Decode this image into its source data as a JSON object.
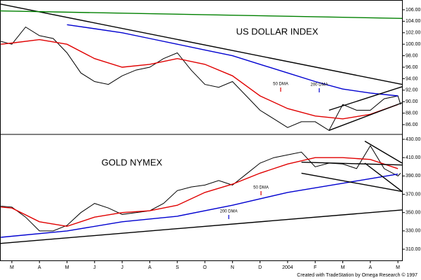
{
  "chart_data": [
    {
      "type": "line",
      "title": "US DOLLAR INDEX",
      "xlim": [
        -0.43,
        14.15
      ],
      "ylim": [
        84.3,
        107.7
      ],
      "yticks": [
        {
          "value": 86,
          "label": "86.00"
        },
        {
          "value": 88,
          "label": "88.00"
        },
        {
          "value": 90,
          "label": "90.00"
        },
        {
          "value": 92,
          "label": "92.00"
        },
        {
          "value": 94,
          "label": "94.00"
        },
        {
          "value": 96,
          "label": "96.00"
        },
        {
          "value": 98,
          "label": "98.00"
        },
        {
          "value": 100,
          "label": "100.00"
        },
        {
          "value": 102,
          "label": "102.00"
        },
        {
          "value": 104,
          "label": "104.00"
        },
        {
          "value": 106,
          "label": "106.00"
        }
      ],
      "series": [
        {
          "color": "#000000",
          "x": [
            -0.4,
            0,
            0.5,
            1,
            1.5,
            2,
            2.5,
            3,
            3.5,
            4,
            4.5,
            5,
            5.5,
            6,
            6.5,
            7,
            7.5,
            8,
            8.5,
            9,
            9.5,
            10,
            10.5,
            11,
            11.5,
            12,
            12.5,
            13,
            13.5,
            14,
            14.1
          ],
          "values": [
            100.5,
            100,
            103,
            101.5,
            101,
            98.5,
            95,
            93.5,
            93,
            94.5,
            95.5,
            96,
            97.5,
            98.5,
            95.5,
            93,
            92.5,
            93.5,
            91,
            88.5,
            87,
            85.5,
            86.5,
            86.5,
            85,
            89.5,
            88.5,
            88.5,
            90.5,
            91,
            89.5
          ]
        },
        {
          "name": "50 DMA",
          "color": "#e00000",
          "x": [
            -0.4,
            0,
            1,
            2,
            3,
            4,
            5,
            6,
            7,
            8,
            9,
            10,
            11,
            12,
            13,
            14
          ],
          "values": [
            100,
            100.2,
            100.8,
            100,
            97.5,
            96,
            96.5,
            97.5,
            96.5,
            94.5,
            91,
            88.8,
            87.5,
            87,
            87.8,
            89.5
          ]
        },
        {
          "name": "200 DMA",
          "color": "#0000d0",
          "x": [
            2,
            3,
            4,
            5,
            6,
            7,
            8,
            9,
            10,
            11,
            12,
            13,
            14
          ],
          "values": [
            103.4,
            102.7,
            102,
            101,
            100,
            99,
            98,
            96.5,
            95,
            93.5,
            92.2,
            91.5,
            91
          ]
        },
        {
          "color": "#000000",
          "x": [
            -0.43,
            14.15
          ],
          "values": [
            107,
            93
          ]
        },
        {
          "color": "#008000",
          "x": [
            -0.43,
            14.15
          ],
          "values": [
            105.8,
            104.5
          ]
        },
        {
          "color": "#000000",
          "x": [
            11.5,
            14.15
          ],
          "values": [
            85,
            89.8
          ]
        },
        {
          "color": "#000000",
          "x": [
            11.5,
            14.15
          ],
          "values": [
            88.5,
            92.6
          ]
        }
      ]
    },
    {
      "type": "line",
      "title": "GOLD NYMEX",
      "xlim": [
        -0.43,
        14.15
      ],
      "ylim": [
        297.8,
        434.6
      ],
      "yticks": [
        {
          "value": 310,
          "label": "310.00"
        },
        {
          "value": 330,
          "label": "330.00"
        },
        {
          "value": 350,
          "label": "350.00"
        },
        {
          "value": 370,
          "label": "370.00"
        },
        {
          "value": 390,
          "label": "390.00"
        },
        {
          "value": 410,
          "label": "410.00"
        },
        {
          "value": 430,
          "label": "430.00"
        }
      ],
      "xticks": [
        {
          "value": 0,
          "label": "M"
        },
        {
          "value": 1,
          "label": "A"
        },
        {
          "value": 2,
          "label": "M"
        },
        {
          "value": 3,
          "label": "J"
        },
        {
          "value": 4,
          "label": "J"
        },
        {
          "value": 5,
          "label": "A"
        },
        {
          "value": 6,
          "label": "S"
        },
        {
          "value": 7,
          "label": "O"
        },
        {
          "value": 8,
          "label": "N"
        },
        {
          "value": 9,
          "label": "D"
        },
        {
          "value": 10,
          "label": "2004"
        },
        {
          "value": 11,
          "label": "F"
        },
        {
          "value": 12,
          "label": "M"
        },
        {
          "value": 13,
          "label": "A"
        },
        {
          "value": 14,
          "label": "M"
        }
      ],
      "series": [
        {
          "color": "#000000",
          "x": [
            -0.4,
            0,
            0.5,
            1,
            1.5,
            2,
            2.5,
            3,
            3.5,
            4,
            4.5,
            5,
            5.5,
            6,
            6.5,
            7,
            7.5,
            8,
            8.5,
            9,
            9.5,
            10,
            10.5,
            11,
            11.5,
            12,
            12.5,
            13,
            13.5,
            14,
            14.1
          ],
          "values": [
            357,
            356,
            345,
            330,
            330,
            336,
            350,
            360,
            355,
            348,
            350,
            352,
            360,
            374,
            378,
            380,
            385,
            380,
            392,
            404,
            410,
            413,
            416,
            400,
            404,
            403,
            398,
            423,
            398,
            390,
            393
          ]
        },
        {
          "name": "50 DMA",
          "color": "#e00000",
          "x": [
            -0.4,
            0,
            1,
            2,
            3,
            4,
            5,
            6,
            7,
            8,
            9,
            10,
            11,
            12,
            13,
            14
          ],
          "values": [
            356,
            355,
            340,
            335,
            345,
            350,
            352,
            358,
            372,
            381,
            393,
            403,
            410,
            410,
            408,
            398
          ]
        },
        {
          "name": "200 DMA",
          "color": "#0000d0",
          "x": [
            -0.4,
            2,
            4,
            6,
            8,
            10,
            12,
            14
          ],
          "values": [
            323,
            330,
            340,
            346,
            358,
            372,
            382,
            392
          ]
        },
        {
          "color": "#000000",
          "x": [
            -0.43,
            14.15
          ],
          "values": [
            316.3,
            352.9
          ]
        },
        {
          "color": "#000000",
          "x": [
            10.5,
            14.15
          ],
          "values": [
            393,
            373
          ]
        },
        {
          "color": "#000000",
          "x": [
            10.5,
            14.15
          ],
          "values": [
            405,
            402
          ]
        },
        {
          "color": "#000000",
          "x": [
            12.8,
            14.15
          ],
          "values": [
            428,
            404
          ]
        },
        {
          "color": "#000000",
          "x": [
            12.8,
            14.15
          ],
          "values": [
            404,
            373
          ]
        }
      ]
    }
  ],
  "footer": "Created with TradeStation by Omega Research © 1997"
}
